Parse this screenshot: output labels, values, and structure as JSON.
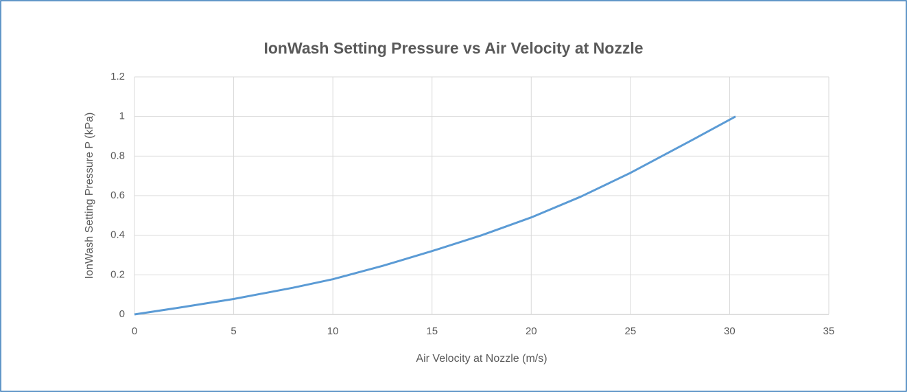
{
  "chart_data": {
    "type": "line",
    "title": "IonWash Setting Pressure vs Air Velocity at Nozzle",
    "x_label": "Air Velocity at Nozzle (m/s)",
    "y_label": "IonWash Setting Pressure P (kPa)",
    "x": [
      0,
      2.5,
      5,
      8,
      10,
      12.5,
      15,
      17.5,
      20,
      22.5,
      25,
      28,
      30.3
    ],
    "values": [
      0,
      0.038,
      0.078,
      0.135,
      0.178,
      0.245,
      0.32,
      0.4,
      0.49,
      0.595,
      0.715,
      0.875,
      1.0
    ],
    "color": "#5b9bd5",
    "xlim": [
      0,
      35
    ],
    "xticks": [
      0,
      5,
      10,
      15,
      20,
      25,
      30,
      35
    ],
    "ylim": [
      0,
      1.2
    ],
    "yticks": [
      0,
      0.2,
      0.4,
      0.6,
      0.8,
      1,
      1.2
    ],
    "grid": true
  }
}
